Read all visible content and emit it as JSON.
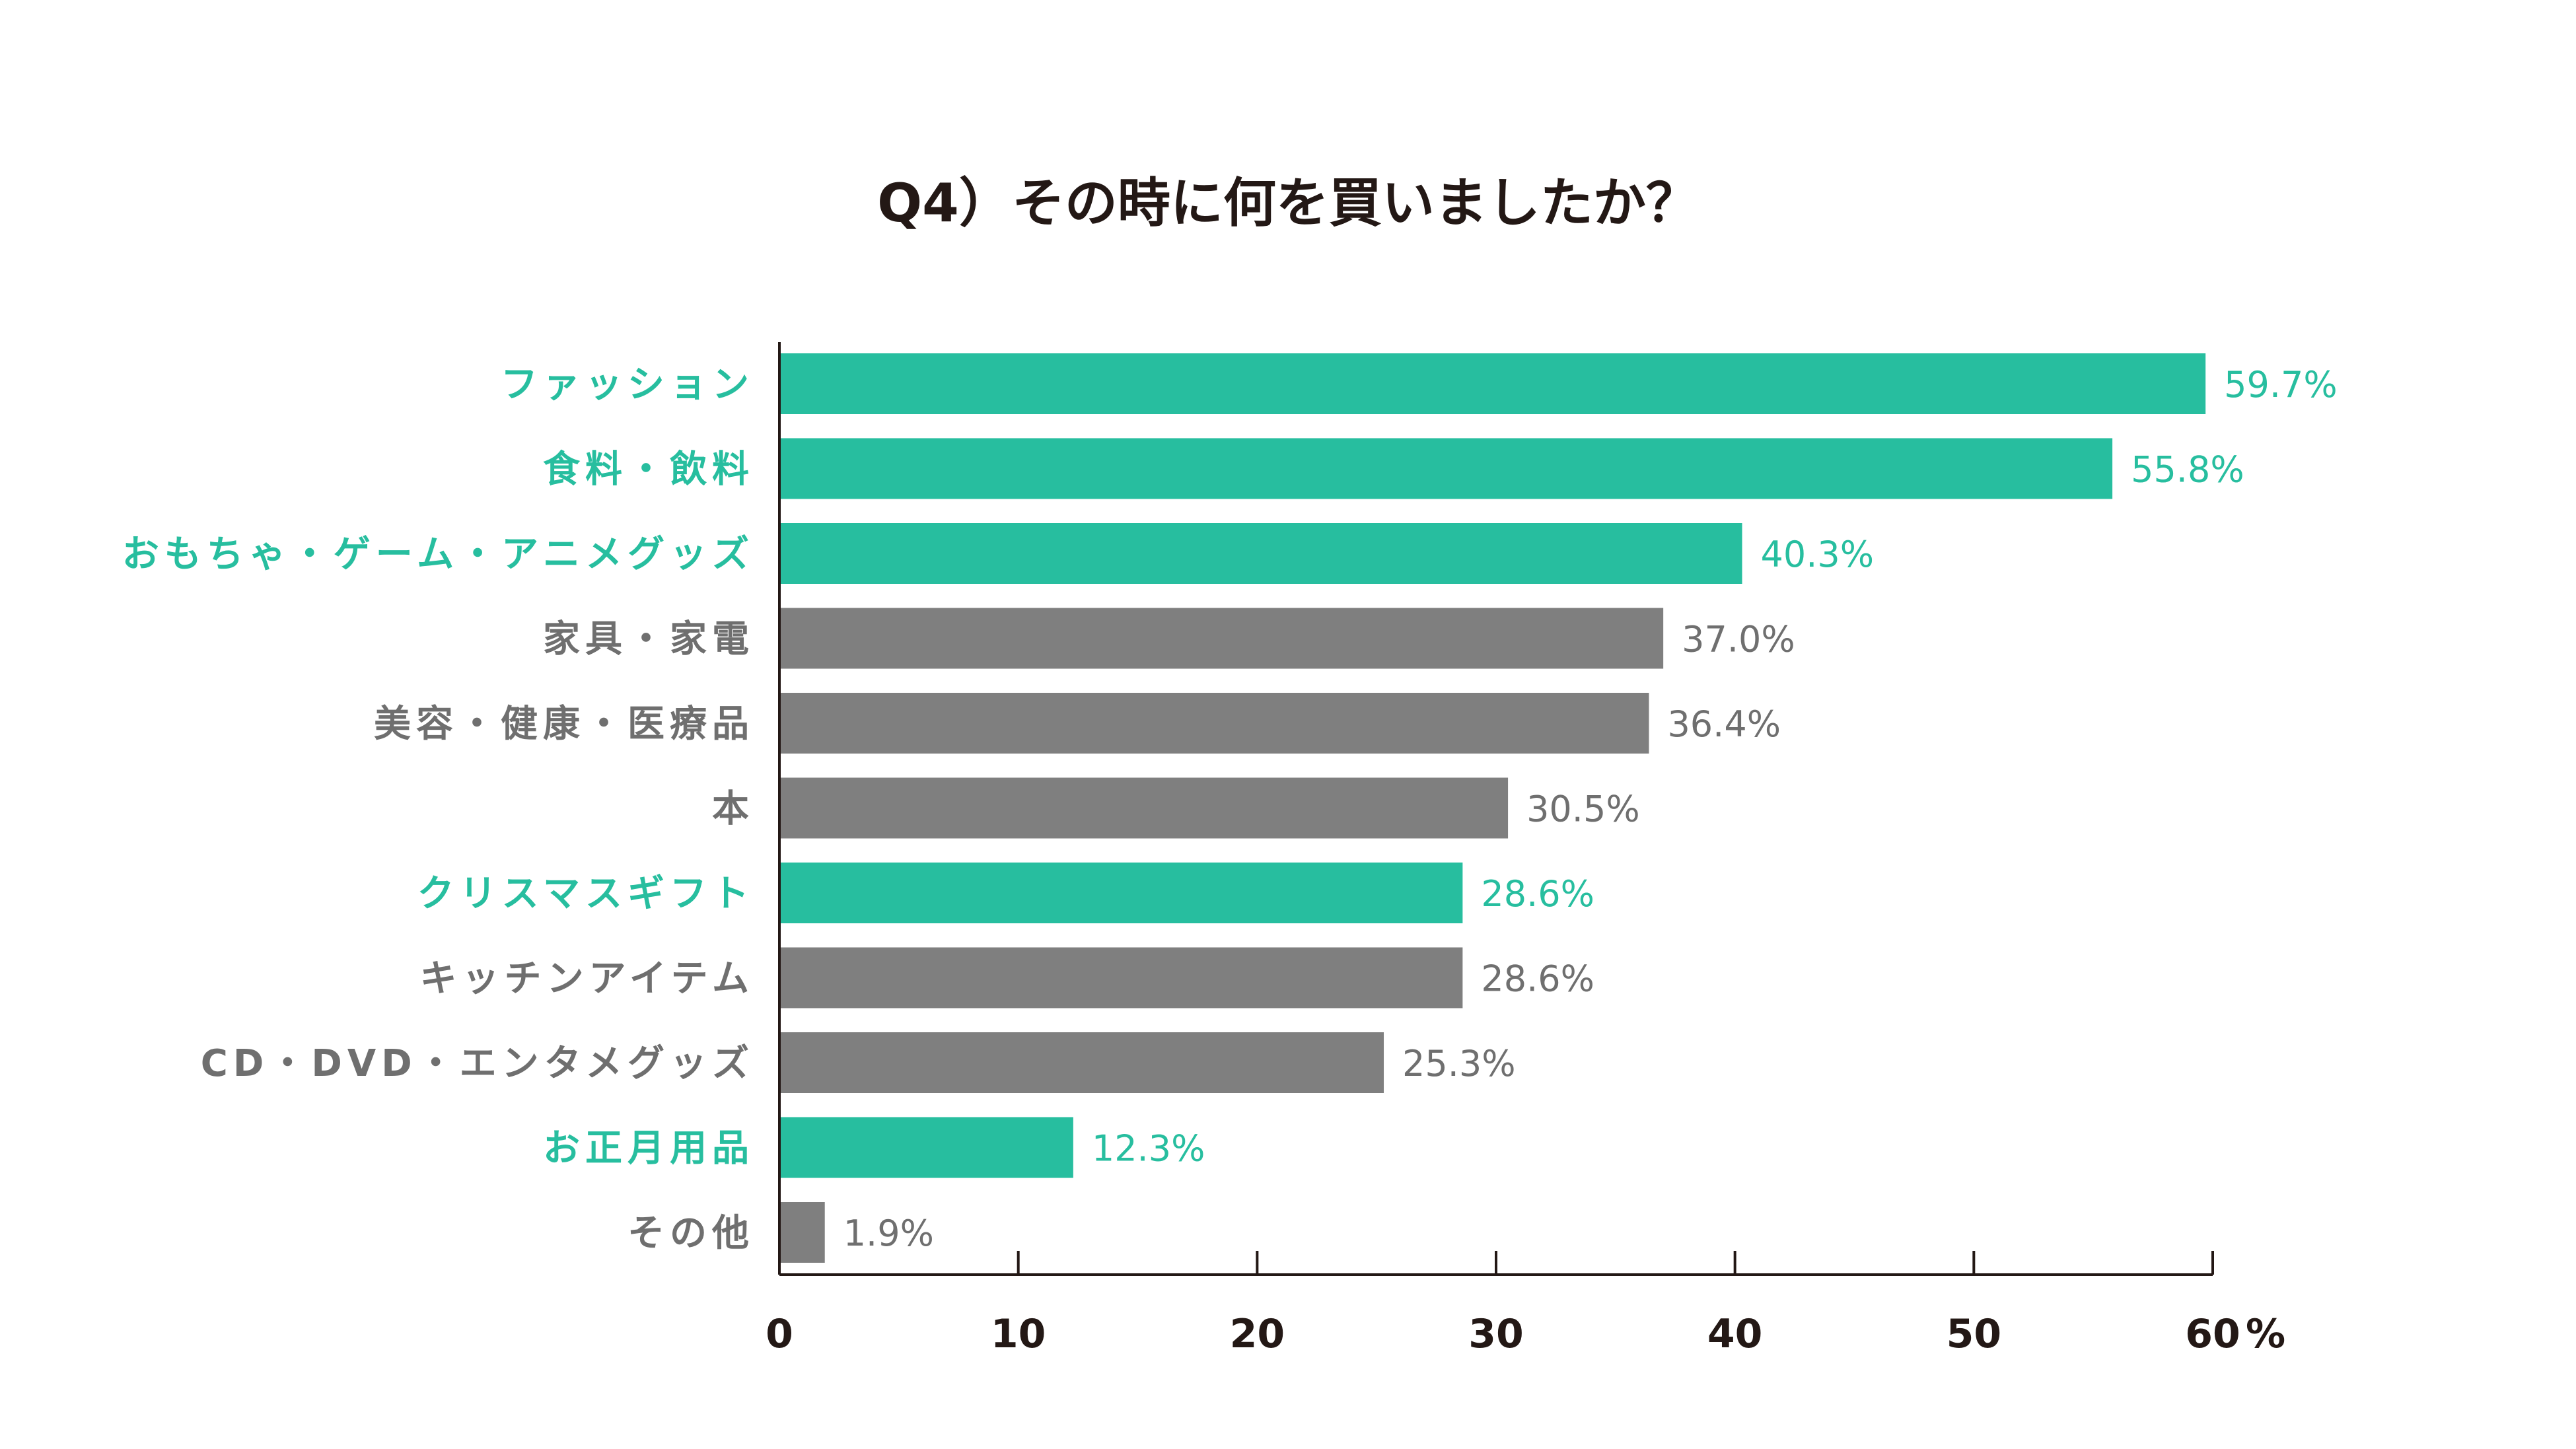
{
  "chart_data": {
    "type": "bar",
    "orientation": "horizontal",
    "title": "Q4）その時に何を買いましたか？",
    "categories": [
      "ファッション",
      "食料・飲料",
      "おもちゃ・ゲーム・アニメグッズ",
      "家具・家電",
      "美容・健康・医療品",
      "本",
      "クリスマスギフト",
      "キッチンアイテム",
      "CD・DVD・エンタメグッズ",
      "お正月用品",
      "その他"
    ],
    "values": [
      59.7,
      55.8,
      40.3,
      37.0,
      36.4,
      30.5,
      28.6,
      28.6,
      25.3,
      12.3,
      1.9
    ],
    "value_labels": [
      "59.7%",
      "55.8%",
      "40.3%",
      "37.0%",
      "36.4%",
      "30.5%",
      "28.6%",
      "28.6%",
      "25.3%",
      "12.3%",
      "1.9%"
    ],
    "highlighted": [
      true,
      true,
      true,
      false,
      false,
      false,
      true,
      false,
      false,
      true,
      false
    ],
    "xlim": [
      0,
      60
    ],
    "x_ticks": [
      "0",
      "10",
      "20",
      "30",
      "40",
      "50",
      "60"
    ],
    "x_unit": "%",
    "grid": false,
    "colors": {
      "highlight": "#27be9f",
      "normal": "#7f7f7f",
      "axis": "#231815",
      "title": "#231815"
    }
  }
}
